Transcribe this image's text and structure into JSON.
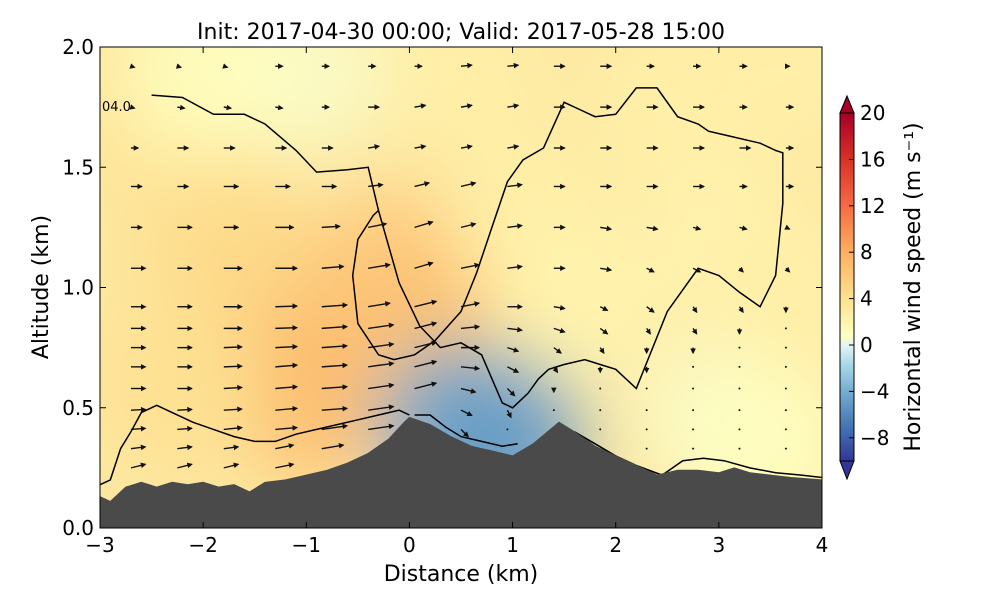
{
  "chart_data": {
    "type": "contourf_quiver_cross_section",
    "title": "Init: 2017-04-30 00:00; Valid: 2017-05-28 15:00",
    "xlabel": "Distance (km)",
    "ylabel": "Altitude (km)",
    "xlim": [
      -3,
      4
    ],
    "ylim": [
      0,
      2
    ],
    "xticks": [
      -3,
      -2,
      -1,
      0,
      1,
      2,
      3,
      4
    ],
    "xtick_labels": [
      "−3",
      "−2",
      "−1",
      "0",
      "1",
      "2",
      "3",
      "4"
    ],
    "yticks": [
      0.0,
      0.5,
      1.0,
      1.5,
      2.0
    ],
    "ytick_labels": [
      "0.0",
      "0.5",
      "1.0",
      "1.5",
      "2.0"
    ],
    "grid": false,
    "contour_label": "04.0",
    "colorbar": {
      "label": "Horizontal wind speed (m s⁻¹)",
      "min": -10,
      "max": 20,
      "ticks": [
        -8,
        -4,
        0,
        4,
        8,
        12,
        16,
        20
      ],
      "tick_labels": [
        "−8",
        "−4",
        "0",
        "4",
        "8",
        "12",
        "16",
        "20"
      ],
      "colormap": "RdYlBu_r",
      "extend": "both"
    },
    "terrain": {
      "color": "#4a4a4a",
      "x": [
        -3.0,
        -2.9,
        -2.75,
        -2.6,
        -2.45,
        -2.3,
        -2.15,
        -2.0,
        -1.85,
        -1.7,
        -1.55,
        -1.4,
        -1.2,
        -1.0,
        -0.8,
        -0.6,
        -0.4,
        -0.2,
        -0.05,
        0.0,
        0.2,
        0.4,
        0.6,
        0.8,
        1.0,
        1.2,
        1.45,
        1.6,
        1.8,
        2.0,
        2.2,
        2.4,
        2.6,
        2.8,
        3.0,
        3.15,
        3.3,
        3.5,
        3.7,
        4.0
      ],
      "y": [
        0.13,
        0.11,
        0.17,
        0.19,
        0.17,
        0.19,
        0.18,
        0.19,
        0.17,
        0.18,
        0.15,
        0.19,
        0.2,
        0.22,
        0.24,
        0.27,
        0.31,
        0.37,
        0.44,
        0.46,
        0.43,
        0.38,
        0.34,
        0.32,
        0.3,
        0.35,
        0.44,
        0.4,
        0.34,
        0.3,
        0.26,
        0.22,
        0.24,
        0.24,
        0.23,
        0.25,
        0.23,
        0.22,
        0.21,
        0.2
      ]
    },
    "wind_speed_field": [
      {
        "x": -1.2,
        "y": 0.85,
        "value": 6.5
      },
      {
        "x": -0.9,
        "y": 0.55,
        "value": 7.0
      },
      {
        "x": -0.2,
        "y": 1.05,
        "value": 6.0
      },
      {
        "x": 0.2,
        "y": 0.8,
        "value": 6.5
      },
      {
        "x": -1.8,
        "y": 1.2,
        "value": 4.5
      },
      {
        "x": -2.2,
        "y": 0.6,
        "value": 4.0
      },
      {
        "x": -2.5,
        "y": 1.7,
        "value": 3.5
      },
      {
        "x": 1.2,
        "y": 1.3,
        "value": 2.5
      },
      {
        "x": 1.6,
        "y": 0.9,
        "value": 2.0
      },
      {
        "x": 2.5,
        "y": 1.8,
        "value": 2.5
      },
      {
        "x": 3.0,
        "y": 1.2,
        "value": 2.0
      },
      {
        "x": -1.0,
        "y": 1.9,
        "value": 0.8
      },
      {
        "x": -2.0,
        "y": 1.9,
        "value": 1.0
      },
      {
        "x": 0.5,
        "y": 0.42,
        "value": -3.0
      },
      {
        "x": 0.9,
        "y": 0.36,
        "value": -4.0
      },
      {
        "x": 3.0,
        "y": 0.45,
        "value": 0.8
      },
      {
        "x": 3.5,
        "y": 0.35,
        "value": 1.0
      },
      {
        "x": 3.8,
        "y": 1.0,
        "value": 2.5
      },
      {
        "x": 3.8,
        "y": 1.9,
        "value": 2.5
      },
      {
        "x": 0.5,
        "y": 1.9,
        "value": 2.5
      }
    ],
    "contour_lines": [
      {
        "level": 4.0,
        "x": [
          -2.5,
          -2.2,
          -1.9,
          -1.6,
          -1.4,
          -1.1,
          -0.9,
          -0.6,
          -0.4,
          -0.3,
          -0.1,
          0.1,
          0.3,
          0.5,
          0.7,
          0.9,
          1.0,
          1.15,
          1.25,
          1.35,
          1.5,
          1.7,
          1.85,
          2.0,
          2.2,
          2.5,
          2.8,
          3.0,
          3.2,
          3.4,
          3.55,
          3.62,
          3.62,
          3.55,
          3.4,
          3.3,
          3.1,
          2.9,
          2.8,
          2.6,
          2.4,
          2.2,
          2.0,
          1.8,
          1.65,
          1.5,
          1.3,
          1.1,
          0.95,
          0.8,
          0.65,
          0.5,
          0.25,
          0.05,
          -0.15,
          -0.3,
          -0.5,
          -0.55,
          -0.5,
          -0.35,
          -0.3
        ],
        "y": [
          1.8,
          1.79,
          1.72,
          1.72,
          1.68,
          1.57,
          1.48,
          1.49,
          1.5,
          1.32,
          1.02,
          0.84,
          0.75,
          0.77,
          0.72,
          0.52,
          0.5,
          0.56,
          0.62,
          0.66,
          0.68,
          0.7,
          0.68,
          0.66,
          0.58,
          0.9,
          1.08,
          1.05,
          0.98,
          0.92,
          1.05,
          1.35,
          1.56,
          1.57,
          1.6,
          1.61,
          1.63,
          1.65,
          1.68,
          1.71,
          1.83,
          1.83,
          1.72,
          1.71,
          1.74,
          1.77,
          1.58,
          1.53,
          1.44,
          1.25,
          1.06,
          0.9,
          0.78,
          0.72,
          0.7,
          0.72,
          0.85,
          1.05,
          1.2,
          1.3,
          1.32
        ]
      },
      {
        "level": 4.0,
        "x": [
          -3.0,
          -2.9,
          -2.8,
          -2.7,
          -2.6,
          -2.45,
          -2.3,
          -2.1,
          -1.9,
          -1.7,
          -1.5,
          -1.3,
          -1.1,
          -0.9,
          -0.7,
          -0.5,
          -0.3,
          -0.1,
          0.0
        ],
        "y": [
          0.18,
          0.2,
          0.33,
          0.4,
          0.48,
          0.51,
          0.48,
          0.44,
          0.41,
          0.38,
          0.36,
          0.36,
          0.39,
          0.41,
          0.43,
          0.45,
          0.47,
          0.49,
          0.47
        ]
      },
      {
        "level": 4.0,
        "x": [
          0.05,
          0.2,
          0.35,
          0.5,
          0.7,
          0.9,
          1.05
        ],
        "y": [
          0.47,
          0.47,
          0.42,
          0.38,
          0.36,
          0.34,
          0.35
        ]
      },
      {
        "level": 4.0,
        "x": [
          1.6,
          1.8,
          2.0,
          2.2,
          2.45,
          2.65,
          2.85,
          3.05,
          3.3,
          3.55,
          3.8,
          4.0
        ],
        "y": [
          0.4,
          0.35,
          0.3,
          0.26,
          0.22,
          0.28,
          0.29,
          0.28,
          0.25,
          0.23,
          0.22,
          0.21
        ]
      }
    ],
    "wind_vectors": {
      "x": [
        -2.7,
        -2.25,
        -1.8,
        -1.3,
        -0.85,
        -0.4,
        0.05,
        0.5,
        0.95,
        1.4,
        1.85,
        2.3,
        2.75,
        3.2,
        3.65
      ],
      "y": [
        0.25,
        0.33,
        0.41,
        0.49,
        0.58,
        0.67,
        0.75,
        0.83,
        0.92,
        1.08,
        1.25,
        1.42,
        1.58,
        1.75,
        1.92
      ],
      "u_note": "m/s",
      "u": [
        [
          4,
          4,
          4,
          5,
          6,
          7,
          0,
          0,
          0,
          0,
          0,
          0,
          0,
          0,
          0
        ],
        [
          4,
          4,
          4,
          5,
          6,
          7,
          5,
          0,
          0,
          0,
          0,
          0,
          0,
          0,
          0
        ],
        [
          4,
          4,
          5,
          6,
          7,
          7,
          6,
          2,
          0,
          0,
          0,
          0,
          0,
          0,
          0
        ],
        [
          4,
          4,
          5,
          6,
          7,
          7,
          6,
          3,
          1,
          0,
          0,
          0,
          0,
          0,
          0
        ],
        [
          4,
          4,
          5,
          6,
          7,
          7,
          6,
          4,
          2,
          0,
          0,
          0,
          0,
          0,
          0
        ],
        [
          4,
          4,
          5,
          6,
          7,
          7,
          6,
          5,
          3,
          1,
          0,
          0,
          0,
          0,
          0
        ],
        [
          4,
          4,
          5,
          6,
          7,
          7,
          6,
          5,
          3,
          2,
          1,
          0,
          0,
          0,
          0
        ],
        [
          4,
          4,
          5,
          6,
          7,
          7,
          6,
          5,
          4,
          3,
          2,
          1,
          1,
          0,
          0
        ],
        [
          4,
          4,
          5,
          6,
          7,
          6,
          6,
          5,
          4,
          3,
          2,
          2,
          1,
          1,
          0
        ],
        [
          4,
          4,
          5,
          6,
          6,
          6,
          5,
          5,
          4,
          3,
          3,
          2,
          2,
          1,
          1
        ],
        [
          3,
          4,
          4,
          5,
          5,
          5,
          5,
          4,
          4,
          3,
          3,
          3,
          2,
          2,
          1
        ],
        [
          3,
          3,
          4,
          4,
          4,
          4,
          4,
          4,
          4,
          3,
          3,
          3,
          3,
          2,
          2
        ],
        [
          2,
          3,
          3,
          3,
          3,
          3,
          3,
          3,
          3,
          3,
          3,
          3,
          3,
          3,
          2
        ],
        [
          1,
          2,
          2,
          2,
          2,
          3,
          3,
          3,
          3,
          3,
          3,
          3,
          3,
          2,
          2
        ],
        [
          1,
          1,
          1,
          2,
          2,
          2,
          2,
          3,
          3,
          3,
          3,
          2,
          2,
          2,
          1
        ]
      ],
      "w": [
        [
          1,
          1,
          1,
          1,
          1,
          1,
          0,
          0,
          0,
          0,
          0,
          0,
          0,
          0,
          0
        ],
        [
          0.5,
          0.5,
          0.5,
          1,
          1,
          1,
          1,
          0,
          0,
          0,
          0,
          0,
          0,
          0,
          0
        ],
        [
          0.3,
          0.3,
          0.5,
          0.5,
          1,
          1,
          1,
          -2,
          0,
          0,
          0,
          0,
          0,
          0,
          0
        ],
        [
          0.2,
          0.2,
          0.3,
          0.5,
          0.5,
          1,
          1.5,
          -1.5,
          -2,
          0,
          0,
          0,
          0,
          0,
          0
        ],
        [
          0,
          0,
          0.3,
          0.5,
          0.5,
          1,
          1.5,
          -1,
          -2,
          -1,
          0,
          0,
          0,
          0,
          0
        ],
        [
          0,
          0,
          0.2,
          0.5,
          0.5,
          1,
          1.5,
          -0.5,
          -1.5,
          -1.5,
          -1.5,
          -1.5,
          0,
          0,
          0
        ],
        [
          0,
          0,
          0.2,
          0.3,
          0.5,
          1,
          1.5,
          0,
          -1,
          -1.5,
          -1.5,
          -1.5,
          -1.5,
          0,
          0
        ],
        [
          0,
          0,
          0,
          0.2,
          0.5,
          1,
          1.5,
          0.5,
          -0.5,
          -1,
          -1.5,
          -1.5,
          -1.5,
          -1.5,
          0
        ],
        [
          0,
          0,
          0,
          0.2,
          0.5,
          1,
          1.5,
          1,
          0,
          -0.5,
          -1,
          -1.5,
          -1.5,
          -1.5,
          -1.5
        ],
        [
          0,
          0,
          0,
          0,
          0.5,
          1,
          1.5,
          1,
          0.5,
          0,
          -0.5,
          -1,
          -1,
          -1,
          -1
        ],
        [
          0,
          0,
          0,
          0,
          0.3,
          1,
          1.5,
          1,
          0.5,
          0,
          -0.5,
          -0.5,
          -0.5,
          -0.5,
          -0.5
        ],
        [
          0,
          0,
          0,
          0,
          0,
          0.5,
          1,
          1,
          0.5,
          0,
          0,
          0,
          0,
          0,
          0
        ],
        [
          0,
          0,
          0,
          0,
          0,
          0.5,
          0.5,
          0.5,
          0.5,
          0,
          0,
          0,
          0,
          0,
          0
        ],
        [
          -0.3,
          -0.3,
          -0.3,
          -0.3,
          0,
          0,
          0.5,
          0.5,
          0.5,
          0,
          0,
          0,
          0,
          0,
          0
        ],
        [
          -0.3,
          -0.3,
          -0.3,
          0,
          0,
          0,
          0,
          0.3,
          0.3,
          0,
          0,
          0,
          0,
          0,
          0
        ]
      ]
    }
  }
}
